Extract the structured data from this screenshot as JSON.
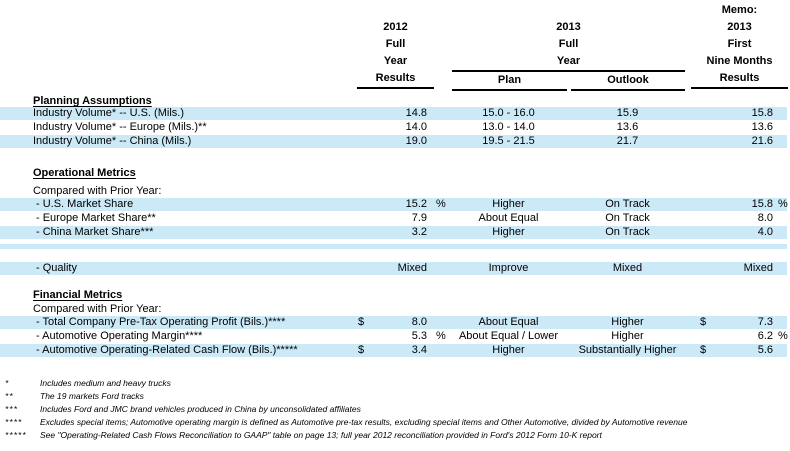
{
  "colors": {
    "band": "#cce9f8",
    "rule": "#000000"
  },
  "header": {
    "col2012": [
      "2012",
      "Full",
      "Year",
      "Results"
    ],
    "col2013": [
      "2013",
      "Full",
      "Year"
    ],
    "plan_label": "Plan",
    "outlook_label": "Outlook",
    "memo": [
      "Memo:",
      "2013",
      "First",
      "Nine Months",
      "Results"
    ]
  },
  "sections": [
    {
      "title": "Planning Assumptions",
      "subtitle": "",
      "rows": [
        {
          "label": "Industry Volume* -- U.S. (Mils.)",
          "v1": "14.8",
          "plan": "15.0 - 16.0",
          "outlook": "15.9",
          "v2": "15.8",
          "band": true
        },
        {
          "label": "Industry Volume* -- Europe (Mils.)**",
          "v1": "14.0",
          "plan": "13.0 - 14.0",
          "outlook": "13.6",
          "v2": "13.6",
          "band": false
        },
        {
          "label": "Industry Volume* -- China (Mils.)",
          "v1": "19.0",
          "plan": "19.5 - 21.5",
          "outlook": "21.7",
          "v2": "21.6",
          "band": true
        }
      ]
    },
    {
      "title": "Operational Metrics",
      "subtitle": "Compared with Prior Year:",
      "rows": [
        {
          "label": "- U.S. Market Share",
          "v1": "15.2",
          "p1": "%",
          "plan": "Higher",
          "outlook": "On Track",
          "v2": "15.8",
          "p2": "%",
          "band": true
        },
        {
          "label": "- Europe Market Share**",
          "v1": "7.9",
          "plan": "About Equal",
          "outlook": "On Track",
          "v2": "8.0",
          "band": false
        },
        {
          "label": "- China Market Share***",
          "v1": "3.2",
          "plan": "Higher",
          "outlook": "On Track",
          "v2": "4.0",
          "band": true
        },
        {
          "spacer": true
        },
        {
          "label": "- Quality",
          "v1": "Mixed",
          "plan": "Improve",
          "outlook": "Mixed",
          "v2": "Mixed",
          "band": true
        }
      ]
    },
    {
      "title": "Financial Metrics",
      "subtitle": "Compared with Prior Year:",
      "rows": [
        {
          "label": "- Total Company Pre-Tax Operating Profit (Bils.)****",
          "d1": "$",
          "v1": "8.0",
          "plan": "About Equal",
          "outlook": "Higher",
          "d2": "$",
          "v2": "7.3",
          "band": true
        },
        {
          "label": "- Automotive Operating Margin****",
          "v1": "5.3",
          "p1": "%",
          "plan": "About Equal / Lower",
          "outlook": "Higher",
          "v2": "6.2",
          "p2": "%",
          "band": false
        },
        {
          "label": "- Automotive Operating-Related Cash Flow (Bils.)*****",
          "d1": "$",
          "v1": "3.4",
          "plan": "Higher",
          "outlook": "Substantially Higher",
          "d2": "$",
          "v2": "5.6",
          "band": true
        }
      ]
    }
  ],
  "footnotes": [
    {
      "marker": "*",
      "text": "Includes medium and heavy trucks"
    },
    {
      "marker": "**",
      "text": "The 19 markets Ford tracks"
    },
    {
      "marker": "***",
      "text": "Includes Ford and JMC brand vehicles produced in China by unconsolidated affiliates"
    },
    {
      "marker": "****",
      "text": "Excludes special items; Automotive operating margin is defined as Automotive pre-tax results, excluding special items and Other Automotive, divided by Automotive revenue"
    },
    {
      "marker": "*****",
      "text": "See \"Operating-Related Cash Flows Reconciliation to GAAP\" table on page 13; full year 2012 reconciliation provided in Ford's 2012 Form 10-K report"
    }
  ]
}
